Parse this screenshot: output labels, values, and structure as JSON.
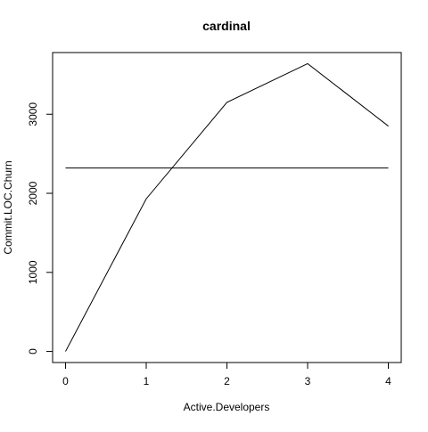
{
  "chart_data": {
    "type": "line",
    "title": "cardinal",
    "xlabel": "Active.Developers",
    "ylabel": "Commit.LOC.Churn",
    "x": [
      0,
      1,
      2,
      3,
      4
    ],
    "series": [
      {
        "values": [
          0,
          1930,
          3150,
          3640,
          2850
        ]
      },
      {
        "values": [
          2320,
          2320,
          2320,
          2320,
          2320
        ]
      }
    ],
    "xlim": [
      -0.16,
      4.16
    ],
    "ylim": [
      -140,
      3780
    ],
    "xticks": [
      0,
      1,
      2,
      3,
      4
    ],
    "xtick_labels": [
      "0",
      "1",
      "2",
      "3",
      "4"
    ],
    "yticks": [
      0,
      1000,
      2000,
      3000
    ],
    "ytick_labels": [
      "0",
      "1000",
      "2000",
      "3000"
    ],
    "grid": false,
    "legend": "none",
    "line_color": "#000000"
  }
}
